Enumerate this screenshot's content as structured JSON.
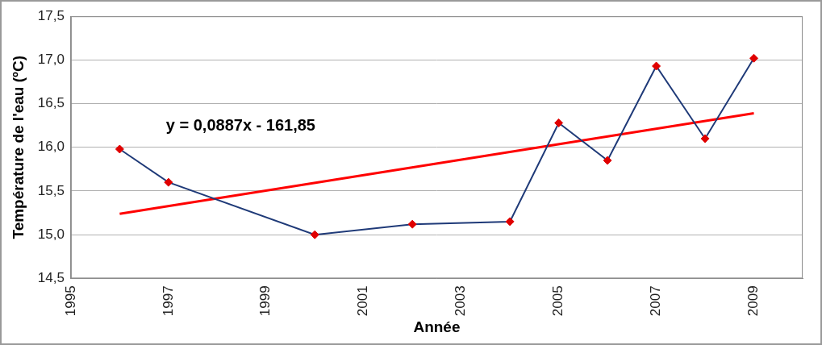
{
  "chart_data": {
    "type": "line",
    "x_label": "Année",
    "y_label": "Température de l'eau (ºC)",
    "annotations": [
      "y = 0,0887x - 161,85"
    ],
    "x": [
      1996,
      1997,
      2000,
      2002,
      2004,
      2005,
      2006,
      2007,
      2008,
      2009
    ],
    "series": [
      {
        "color": "#1f3a78",
        "colors": [
          "#e00000",
          "#e00000",
          "#e00000",
          "#e00000",
          "#e00000",
          "#e00000",
          "#e00000",
          "#e00000",
          "#e00000",
          "#e00000"
        ],
        "marker": "diamond",
        "line_style": "solid",
        "values": [
          15.98,
          15.6,
          15.0,
          15.12,
          15.15,
          16.28,
          15.85,
          16.93,
          16.1,
          17.02
        ]
      },
      {
        "color": "#ff0000",
        "marker": "none",
        "line_style": "solid",
        "x": [
          1996,
          2009
        ],
        "values": [
          15.24,
          16.39
        ]
      }
    ],
    "xlim": [
      1995,
      2010
    ],
    "xticks": [
      1995,
      1997,
      1999,
      2001,
      2003,
      2005,
      2007,
      2009
    ],
    "ylim": [
      14.5,
      17.5
    ],
    "yticks": [
      {
        "value": 14.5,
        "label": "14,5"
      },
      {
        "value": 15.0,
        "label": "15,0"
      },
      {
        "value": 15.5,
        "label": "15,5"
      },
      {
        "value": 16.0,
        "label": "16,0"
      },
      {
        "value": 16.5,
        "label": "16,5"
      },
      {
        "value": 17.0,
        "label": "17,0"
      },
      {
        "value": 17.5,
        "label": "17,5"
      }
    ],
    "grid": "y"
  }
}
